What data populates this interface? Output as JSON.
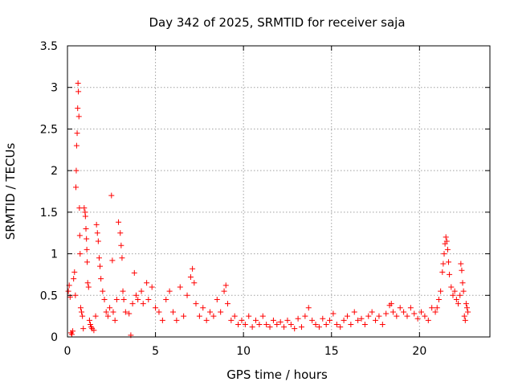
{
  "chart_data": {
    "type": "scatter",
    "title": "Day 342 of 2025, SRMTID for receiver saja",
    "xlabel": "GPS time / hours",
    "ylabel": "SRMTID / TECUs",
    "xlim": [
      0,
      24
    ],
    "ylim": [
      0,
      3.5
    ],
    "xticks": [
      "0",
      "5",
      "10",
      "15",
      "20"
    ],
    "yticks": [
      "0",
      "0.5",
      "1",
      "1.5",
      "2",
      "2.5",
      "3",
      "3.5"
    ],
    "grid": true,
    "marker": "+",
    "color": "#ff0000",
    "series": [
      {
        "name": "SRMTID",
        "points": [
          [
            0.05,
            0.55
          ],
          [
            0.1,
            0.62
          ],
          [
            0.15,
            0.48
          ],
          [
            0.2,
            0.05
          ],
          [
            0.25,
            0.03
          ],
          [
            0.3,
            0.07
          ],
          [
            0.35,
            0.7
          ],
          [
            0.4,
            0.78
          ],
          [
            0.45,
            0.5
          ],
          [
            0.48,
            1.8
          ],
          [
            0.5,
            2.0
          ],
          [
            0.52,
            2.3
          ],
          [
            0.55,
            2.45
          ],
          [
            0.58,
            2.75
          ],
          [
            0.6,
            3.05
          ],
          [
            0.62,
            2.95
          ],
          [
            0.65,
            2.65
          ],
          [
            0.68,
            1.55
          ],
          [
            0.7,
            1.22
          ],
          [
            0.72,
            1.0
          ],
          [
            0.75,
            0.35
          ],
          [
            0.8,
            0.3
          ],
          [
            0.85,
            0.25
          ],
          [
            0.9,
            0.1
          ],
          [
            0.95,
            1.55
          ],
          [
            1.0,
            1.5
          ],
          [
            1.02,
            1.45
          ],
          [
            1.05,
            1.3
          ],
          [
            1.08,
            1.18
          ],
          [
            1.1,
            1.05
          ],
          [
            1.12,
            0.9
          ],
          [
            1.15,
            0.65
          ],
          [
            1.2,
            0.6
          ],
          [
            1.25,
            0.2
          ],
          [
            1.3,
            0.15
          ],
          [
            1.35,
            0.12
          ],
          [
            1.4,
            0.1
          ],
          [
            1.5,
            0.08
          ],
          [
            1.6,
            0.25
          ],
          [
            1.65,
            1.35
          ],
          [
            1.7,
            1.25
          ],
          [
            1.75,
            1.15
          ],
          [
            1.8,
            0.95
          ],
          [
            1.85,
            0.85
          ],
          [
            1.9,
            0.7
          ],
          [
            2.0,
            0.55
          ],
          [
            2.1,
            0.45
          ],
          [
            2.2,
            0.3
          ],
          [
            2.3,
            0.25
          ],
          [
            2.4,
            0.35
          ],
          [
            2.5,
            1.7
          ],
          [
            2.55,
            0.92
          ],
          [
            2.6,
            0.3
          ],
          [
            2.7,
            0.2
          ],
          [
            2.8,
            0.45
          ],
          [
            2.9,
            1.38
          ],
          [
            3.0,
            1.25
          ],
          [
            3.05,
            1.1
          ],
          [
            3.1,
            0.95
          ],
          [
            3.15,
            0.55
          ],
          [
            3.2,
            0.45
          ],
          [
            3.3,
            0.3
          ],
          [
            3.5,
            0.28
          ],
          [
            3.6,
            0.02
          ],
          [
            3.7,
            0.4
          ],
          [
            3.8,
            0.77
          ],
          [
            3.9,
            0.5
          ],
          [
            4.0,
            0.45
          ],
          [
            4.2,
            0.55
          ],
          [
            4.3,
            0.4
          ],
          [
            4.5,
            0.65
          ],
          [
            4.6,
            0.45
          ],
          [
            4.8,
            0.6
          ],
          [
            5.0,
            0.35
          ],
          [
            5.2,
            0.3
          ],
          [
            5.4,
            0.2
          ],
          [
            5.6,
            0.45
          ],
          [
            5.8,
            0.55
          ],
          [
            6.0,
            0.3
          ],
          [
            6.2,
            0.2
          ],
          [
            6.4,
            0.6
          ],
          [
            6.6,
            0.25
          ],
          [
            6.8,
            0.5
          ],
          [
            7.0,
            0.72
          ],
          [
            7.1,
            0.82
          ],
          [
            7.2,
            0.65
          ],
          [
            7.3,
            0.4
          ],
          [
            7.5,
            0.25
          ],
          [
            7.7,
            0.35
          ],
          [
            7.9,
            0.2
          ],
          [
            8.1,
            0.3
          ],
          [
            8.3,
            0.25
          ],
          [
            8.5,
            0.45
          ],
          [
            8.7,
            0.3
          ],
          [
            8.9,
            0.55
          ],
          [
            9.0,
            0.62
          ],
          [
            9.1,
            0.4
          ],
          [
            9.3,
            0.2
          ],
          [
            9.5,
            0.25
          ],
          [
            9.7,
            0.15
          ],
          [
            9.9,
            0.2
          ],
          [
            10.1,
            0.15
          ],
          [
            10.3,
            0.25
          ],
          [
            10.5,
            0.12
          ],
          [
            10.7,
            0.2
          ],
          [
            10.9,
            0.15
          ],
          [
            11.1,
            0.25
          ],
          [
            11.3,
            0.15
          ],
          [
            11.5,
            0.12
          ],
          [
            11.7,
            0.2
          ],
          [
            11.9,
            0.15
          ],
          [
            12.1,
            0.18
          ],
          [
            12.3,
            0.12
          ],
          [
            12.5,
            0.2
          ],
          [
            12.7,
            0.15
          ],
          [
            12.9,
            0.1
          ],
          [
            13.1,
            0.22
          ],
          [
            13.3,
            0.12
          ],
          [
            13.5,
            0.25
          ],
          [
            13.7,
            0.35
          ],
          [
            13.9,
            0.2
          ],
          [
            14.1,
            0.15
          ],
          [
            14.3,
            0.12
          ],
          [
            14.5,
            0.22
          ],
          [
            14.7,
            0.15
          ],
          [
            14.9,
            0.2
          ],
          [
            15.1,
            0.28
          ],
          [
            15.3,
            0.15
          ],
          [
            15.5,
            0.12
          ],
          [
            15.7,
            0.2
          ],
          [
            15.9,
            0.25
          ],
          [
            16.1,
            0.15
          ],
          [
            16.3,
            0.3
          ],
          [
            16.5,
            0.2
          ],
          [
            16.7,
            0.22
          ],
          [
            16.9,
            0.15
          ],
          [
            17.1,
            0.25
          ],
          [
            17.3,
            0.3
          ],
          [
            17.5,
            0.2
          ],
          [
            17.7,
            0.25
          ],
          [
            17.9,
            0.15
          ],
          [
            18.1,
            0.28
          ],
          [
            18.3,
            0.38
          ],
          [
            18.4,
            0.4
          ],
          [
            18.5,
            0.3
          ],
          [
            18.7,
            0.25
          ],
          [
            18.9,
            0.35
          ],
          [
            19.1,
            0.3
          ],
          [
            19.3,
            0.25
          ],
          [
            19.5,
            0.35
          ],
          [
            19.7,
            0.28
          ],
          [
            19.9,
            0.22
          ],
          [
            20.1,
            0.3
          ],
          [
            20.3,
            0.25
          ],
          [
            20.5,
            0.2
          ],
          [
            20.7,
            0.35
          ],
          [
            20.9,
            0.3
          ],
          [
            21.0,
            0.35
          ],
          [
            21.1,
            0.45
          ],
          [
            21.2,
            0.55
          ],
          [
            21.3,
            0.78
          ],
          [
            21.35,
            0.88
          ],
          [
            21.4,
            1.0
          ],
          [
            21.45,
            1.12
          ],
          [
            21.5,
            1.2
          ],
          [
            21.55,
            1.15
          ],
          [
            21.6,
            1.05
          ],
          [
            21.65,
            0.9
          ],
          [
            21.7,
            0.75
          ],
          [
            21.8,
            0.6
          ],
          [
            21.9,
            0.5
          ],
          [
            22.0,
            0.55
          ],
          [
            22.1,
            0.45
          ],
          [
            22.2,
            0.4
          ],
          [
            22.3,
            0.5
          ],
          [
            22.35,
            0.88
          ],
          [
            22.4,
            0.8
          ],
          [
            22.45,
            0.65
          ],
          [
            22.5,
            0.55
          ],
          [
            22.55,
            0.25
          ],
          [
            22.6,
            0.2
          ],
          [
            22.65,
            0.4
          ],
          [
            22.7,
            0.35
          ],
          [
            22.75,
            0.3
          ]
        ]
      }
    ]
  }
}
